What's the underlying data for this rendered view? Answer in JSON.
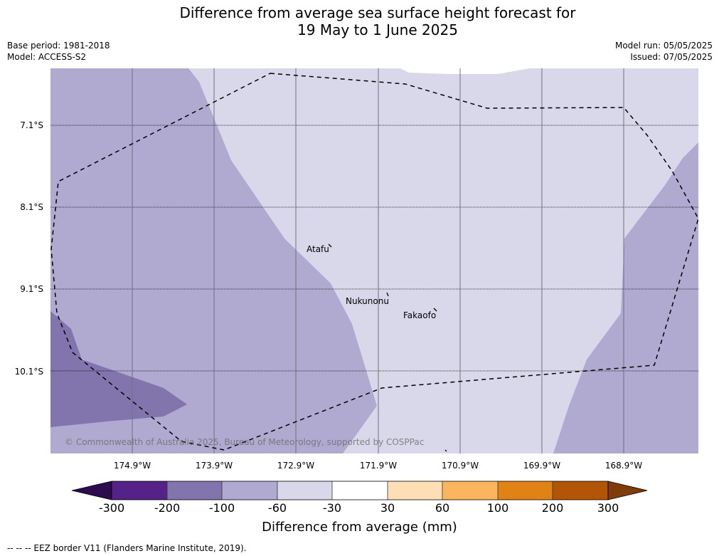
{
  "title": {
    "line1": "Difference from average sea surface height forecast for",
    "line2": "19 May to 1 June 2025"
  },
  "meta": {
    "base_period": "Base period: 1981-2018",
    "model": "Model: ACCESS-S2",
    "model_run": "Model run: 05/05/2025",
    "issued": "Issued: 07/05/2025"
  },
  "map": {
    "lat_labels": [
      "7.1°S",
      "8.1°S",
      "9.1°S",
      "10.1°S"
    ],
    "lon_labels": [
      "174.9°W",
      "173.9°W",
      "172.9°W",
      "171.9°W",
      "170.9°W",
      "169.9°W",
      "168.9°W"
    ],
    "places": [
      "Atafu",
      "Nukunonu",
      "Fakaofo"
    ],
    "copyright": "© Commonwealth of Australia 2025, Bureau of Meteorology, supported by COSPPac",
    "colors": {
      "c_minus100_minus60": "#b0aad1",
      "c_minus60_minus30": "#d8d8ea",
      "c_minus200_minus100": "#8274ad",
      "land": "#000000"
    }
  },
  "colorbar": {
    "title": "Difference from average (mm)",
    "tick_labels": [
      "-300",
      "-200",
      "-100",
      "-60",
      "-30",
      "30",
      "60",
      "100",
      "200",
      "300"
    ],
    "colors": [
      "#2d0b4f",
      "#552288",
      "#8274ad",
      "#b0aad1",
      "#d8d8ea",
      "#ffffff",
      "#fedfb5",
      "#fbb55f",
      "#e08314",
      "#b25507",
      "#7f3b08"
    ]
  },
  "footnote": "--  --  -- EEZ border V11 (Flanders Marine Institute, 2019)."
}
